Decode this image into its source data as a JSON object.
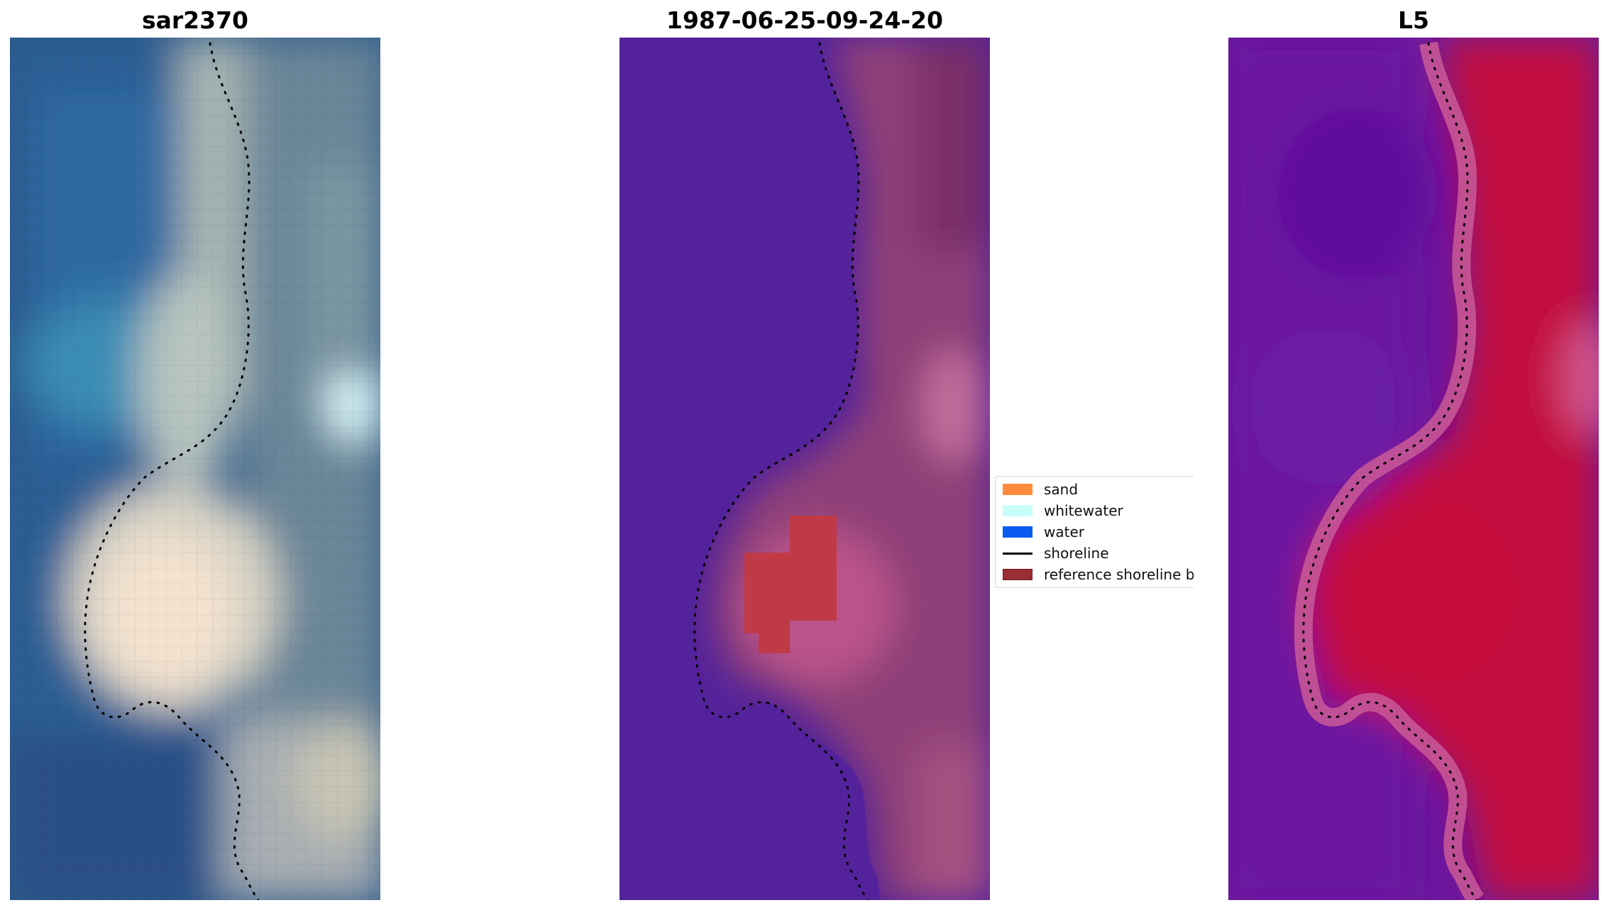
{
  "panels": [
    {
      "title": "sar2370"
    },
    {
      "title": "1987-06-25-09-24-20"
    },
    {
      "title": "L5"
    }
  ],
  "legend": {
    "items": [
      {
        "label": "sand",
        "kind": "patch",
        "color": "#ff8c3c"
      },
      {
        "label": "whitewater",
        "kind": "patch",
        "color": "#c8fffb"
      },
      {
        "label": "water",
        "kind": "patch",
        "color": "#0a5cf0"
      },
      {
        "label": "shoreline",
        "kind": "line",
        "color": "#000000"
      },
      {
        "label": "reference shoreline buffer",
        "kind": "patch",
        "color": "#9b2d35"
      }
    ]
  },
  "colors": {
    "background": "#ffffff",
    "water_class": "#54229a",
    "buffer": "#bf3a46",
    "shoreline_dots": "#000000"
  }
}
